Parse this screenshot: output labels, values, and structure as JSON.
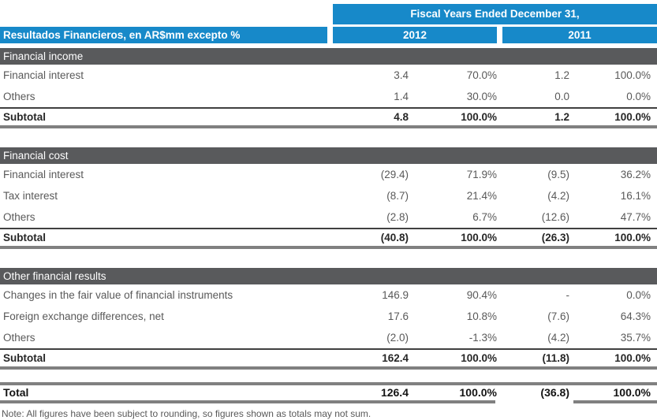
{
  "header": {
    "fiscal_years_label": "Fiscal Years Ended December 31,",
    "table_title": "Resultados Financieros, en AR$mm excepto %",
    "year_2012": "2012",
    "year_2011": "2011"
  },
  "colors": {
    "header_blue": "#1789c9",
    "section_bar_gray": "#595a5c",
    "thick_border_gray": "#808080",
    "thin_border_dark": "#404040",
    "body_text_gray": "#595959",
    "subtotal_text_dark": "#262626"
  },
  "sections": [
    {
      "title": "Financial income",
      "rows": [
        {
          "label": "Financial interest",
          "v2012": "3.4",
          "p2012": "70.0%",
          "v2011": "1.2",
          "p2011": "100.0%"
        },
        {
          "label": "Others",
          "v2012": "1.4",
          "p2012": "30.0%",
          "v2011": "0.0",
          "p2011": "0.0%"
        }
      ],
      "subtotal": {
        "label": "Subtotal",
        "v2012": "4.8",
        "p2012": "100.0%",
        "v2011": "1.2",
        "p2011": "100.0%"
      }
    },
    {
      "title": "Financial cost",
      "rows": [
        {
          "label": "Financial interest",
          "v2012": "(29.4)",
          "p2012": "71.9%",
          "v2011": "(9.5)",
          "p2011": "36.2%"
        },
        {
          "label": "Tax interest",
          "v2012": "(8.7)",
          "p2012": "21.4%",
          "v2011": "(4.2)",
          "p2011": "16.1%"
        },
        {
          "label": "Others",
          "v2012": "(2.8)",
          "p2012": "6.7%",
          "v2011": "(12.6)",
          "p2011": "47.7%"
        }
      ],
      "subtotal": {
        "label": "Subtotal",
        "v2012": "(40.8)",
        "p2012": "100.0%",
        "v2011": "(26.3)",
        "p2011": "100.0%"
      }
    },
    {
      "title": "Other financial results",
      "rows": [
        {
          "label": "Changes in the fair value of financial instruments",
          "v2012": "146.9",
          "p2012": "90.4%",
          "v2011": "-",
          "p2011": "0.0%"
        },
        {
          "label": "Foreign exchange differences, net",
          "v2012": "17.6",
          "p2012": "10.8%",
          "v2011": "(7.6)",
          "p2011": "64.3%"
        },
        {
          "label": "Others",
          "v2012": "(2.0)",
          "p2012": "-1.3%",
          "v2011": "(4.2)",
          "p2011": "35.7%"
        }
      ],
      "subtotal": {
        "label": "Subtotal",
        "v2012": "162.4",
        "p2012": "100.0%",
        "v2011": "(11.8)",
        "p2011": "100.0%"
      }
    }
  ],
  "total": {
    "label": "Total",
    "v2012": "126.4",
    "p2012": "100.0%",
    "v2011": "(36.8)",
    "p2011": "100.0%"
  },
  "note": "Note: All figures have been subject to rounding, so figures shown as totals may not sum."
}
